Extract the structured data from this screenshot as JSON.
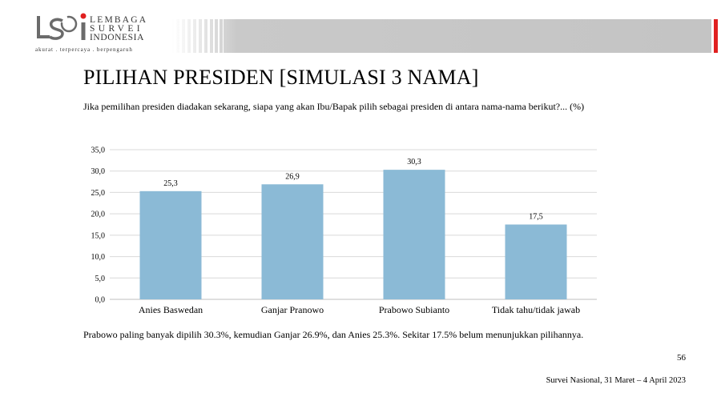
{
  "header": {
    "logo_line1": "LEMBAGA",
    "logo_line2": "SURVEI",
    "logo_line3": "INDONESIA",
    "tagline": "akurat . terpercaya . berpengaruh",
    "accent_color": "#e02020"
  },
  "title": "PILIHAN PRESIDEN [SIMULASI 3 NAMA]",
  "question": "Jika pemilihan  presiden diadakan sekarang,  siapa yang akan Ibu/Bapak pilih  sebagai presiden di antara nama-nama  berikut?... (%)",
  "chart_data": {
    "type": "bar",
    "categories": [
      "Anies Baswedan",
      "Ganjar Pranowo",
      "Prabowo Subianto",
      "Tidak tahu/tidak jawab"
    ],
    "values": [
      25.3,
      26.9,
      30.3,
      17.5
    ],
    "value_labels": [
      "25,3",
      "26,9",
      "30,3",
      "17,5"
    ],
    "yticks": [
      "0,0",
      "5,0",
      "10,0",
      "15,0",
      "20,0",
      "25,0",
      "30,0",
      "35,0"
    ],
    "ylim": [
      0,
      35
    ],
    "bar_color": "#8bbad6",
    "grid": true,
    "title": "",
    "xlabel": "",
    "ylabel": ""
  },
  "summary": "Prabowo paling banyak dipilih  30.3%, kemudian Ganjar 26.9%, dan Anies 25.3%. Sekitar 17.5% belum menunjukkan  pilihannya.",
  "page_number": "56",
  "footer": "Survei  Nasional,  31 Maret – 4 April  2023"
}
